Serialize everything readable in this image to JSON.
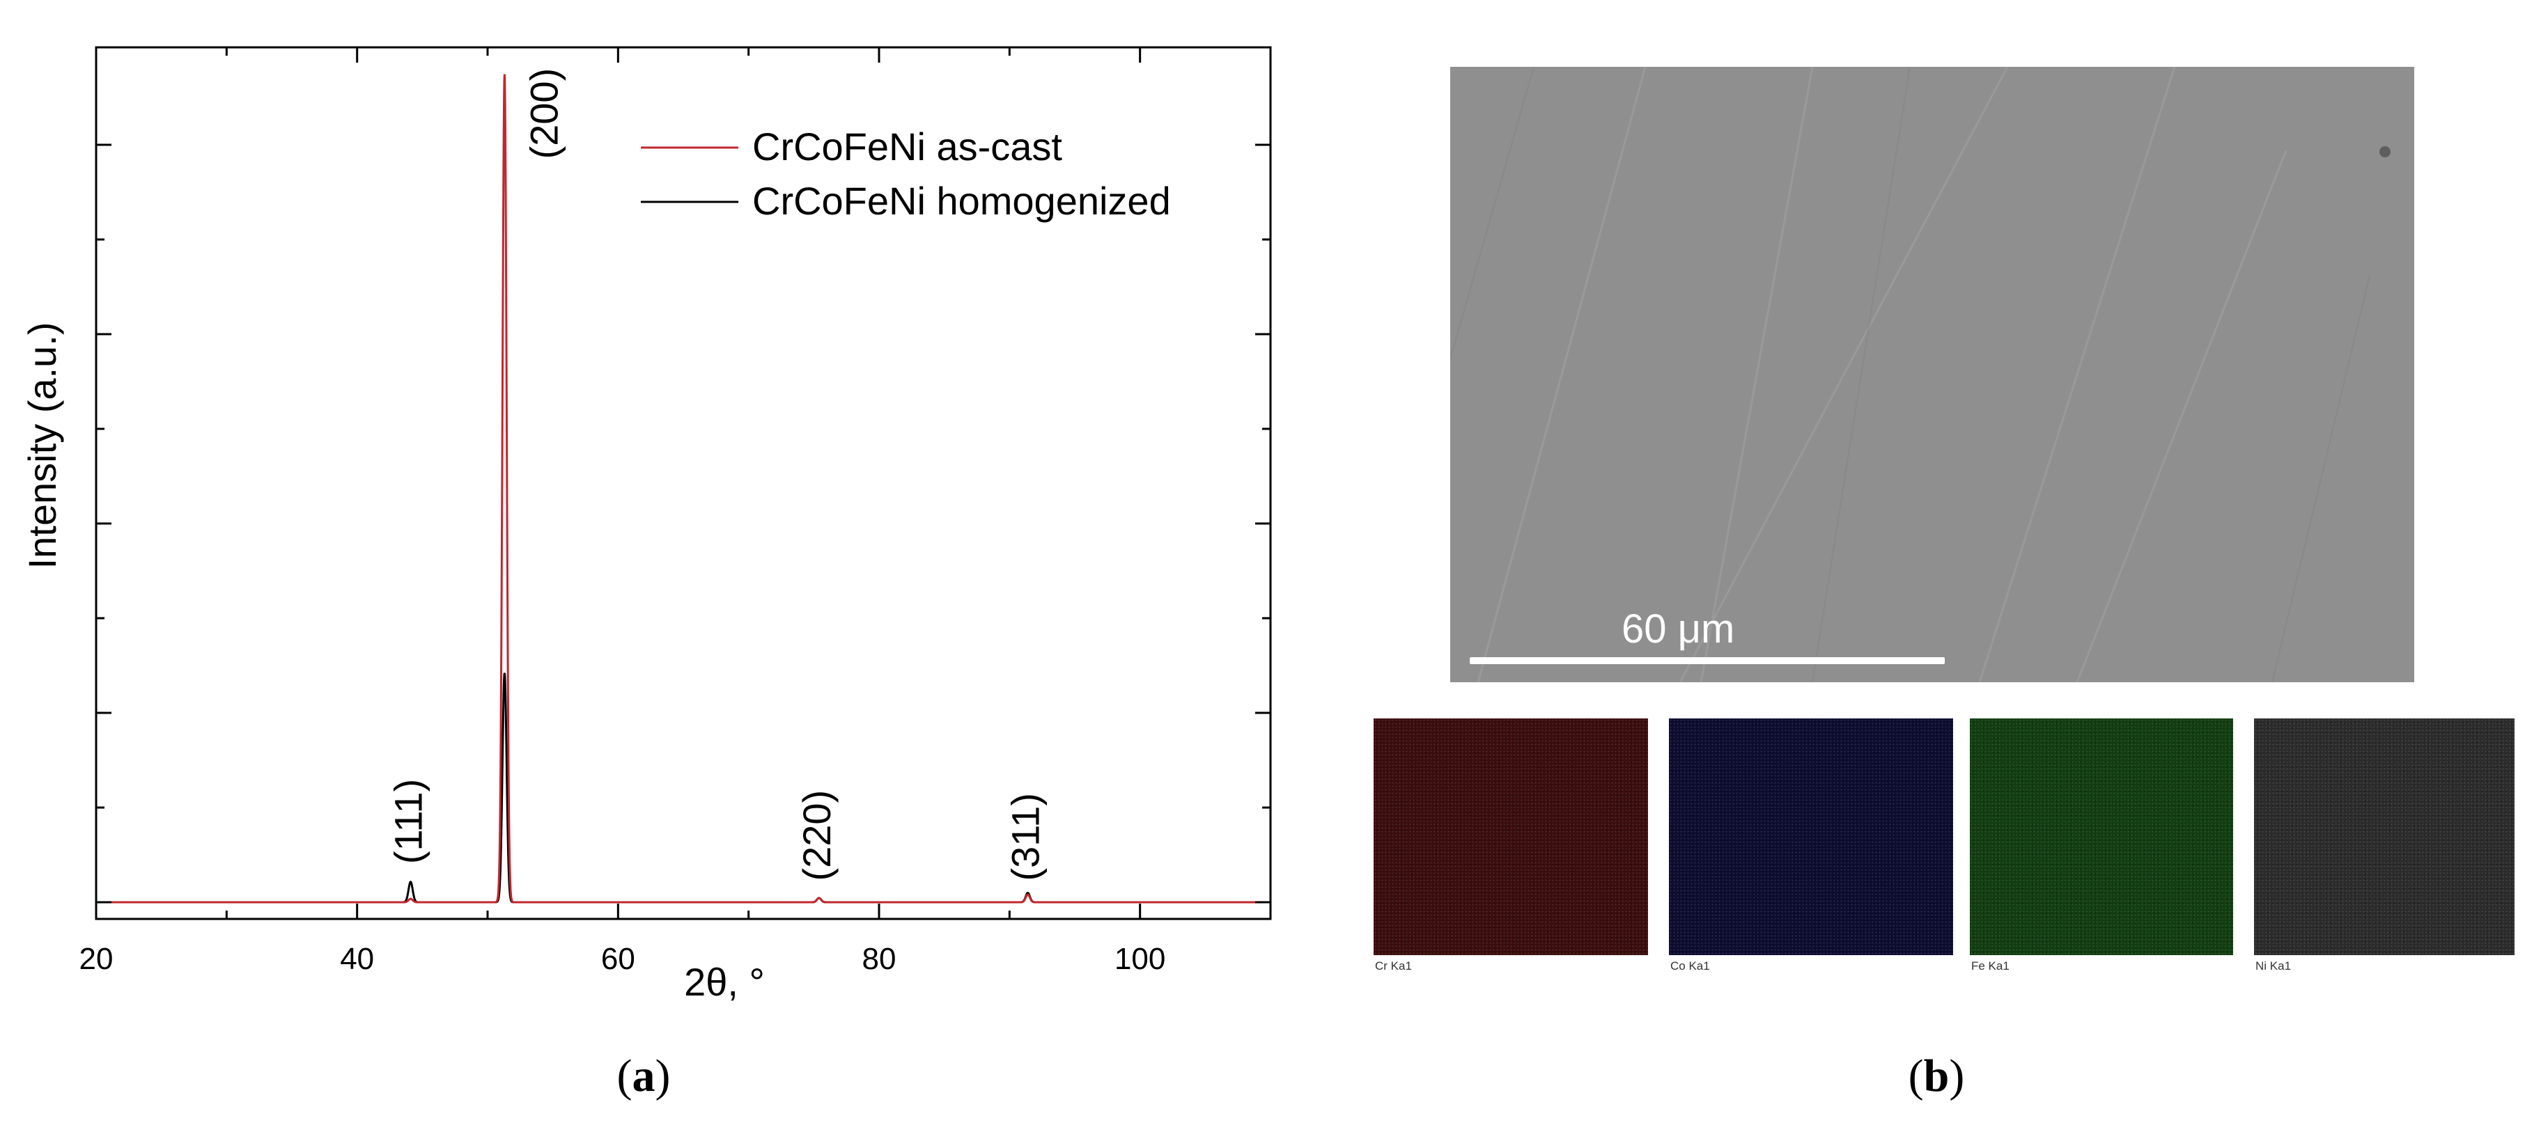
{
  "chart_data": {
    "type": "line",
    "xlabel": "2θ, °",
    "ylabel": "Intensity (a.u.)",
    "xlim": [
      20,
      110
    ],
    "ylim": [
      0,
      100
    ],
    "x_ticks": [
      20,
      40,
      60,
      80,
      100
    ],
    "legend_position": "top-right",
    "series": [
      {
        "name": "CrCoFeNi as-cast",
        "color": "#c1272d",
        "peaks": [
          {
            "x": 44.1,
            "height": 0.4
          },
          {
            "x": 51.3,
            "height": 97.5
          },
          {
            "x": 75.4,
            "height": 0.5
          },
          {
            "x": 91.4,
            "height": 0.9
          }
        ]
      },
      {
        "name": "CrCoFeNi homogenized",
        "color": "#000000",
        "peaks": [
          {
            "x": 44.1,
            "height": 2.4
          },
          {
            "x": 51.3,
            "height": 27.0
          },
          {
            "x": 75.4,
            "height": 0.5
          },
          {
            "x": 91.4,
            "height": 1.1
          }
        ]
      }
    ],
    "annotations": [
      {
        "text": "(111)",
        "x": 44.1,
        "y": 4.5
      },
      {
        "text": "(200)",
        "x": 54.5,
        "y": 87.5
      },
      {
        "text": "(220)",
        "x": 75.4,
        "y": 2.5
      },
      {
        "text": "(311)",
        "x": 91.4,
        "y": 2.5
      }
    ]
  },
  "panel_labels": {
    "a": "a",
    "b": "b"
  },
  "sem": {
    "scale_bar_label": "60 μm"
  },
  "eds_maps": [
    {
      "label": "Cr Ka1",
      "color": "#3a0c0c"
    },
    {
      "label": "Co Ka1",
      "color": "#0c0c30"
    },
    {
      "label": "Fe Ka1",
      "color": "#113d11"
    },
    {
      "label": "Ni Ka1",
      "color": "#2b2b2b"
    }
  ]
}
